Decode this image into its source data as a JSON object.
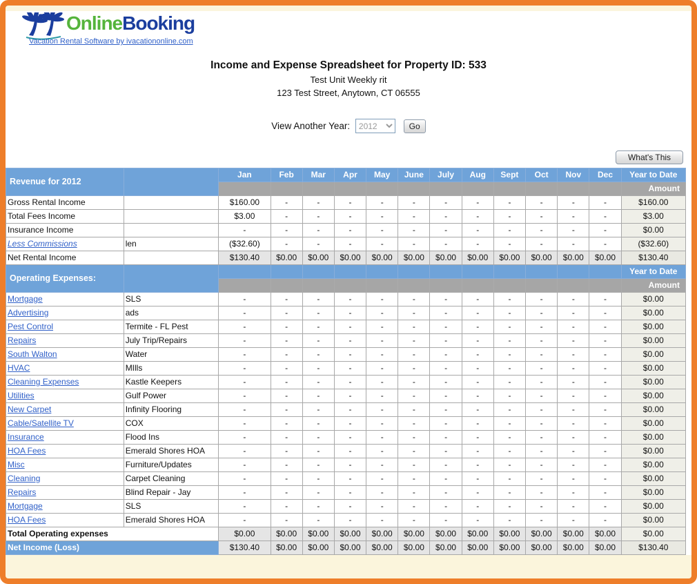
{
  "logo": {
    "brand_online": "Online",
    "brand_booking": "Booking",
    "tagline": "Vacation Rental Software by ivacationonline.com"
  },
  "header": {
    "title": "Income and Expense Spreadsheet for Property ID: 533",
    "unit_name": "Test Unit Weekly rit",
    "address": "123 Test Street, Anytown, CT 06555"
  },
  "year_selector": {
    "label": "View Another Year:",
    "selected_year": "2012",
    "go_label": "Go"
  },
  "whats_this_label": "What's This",
  "table": {
    "revenue_section_label": "Revenue for 2012",
    "expenses_section_label": "Operating Expenses:",
    "months": [
      "Jan",
      "Feb",
      "Mar",
      "Apr",
      "May",
      "June",
      "July",
      "Aug",
      "Sept",
      "Oct",
      "Nov",
      "Dec"
    ],
    "ytd_label": "Year to Date",
    "amount_label": "Amount",
    "revenue_rows": [
      {
        "label": "Gross Rental Income",
        "desc": "",
        "style": "plain",
        "monthly": [
          "$160.00",
          "-",
          "-",
          "-",
          "-",
          "-",
          "-",
          "-",
          "-",
          "-",
          "-",
          "-"
        ],
        "ytd": "$160.00"
      },
      {
        "label": "Total Fees Income",
        "desc": "",
        "style": "plain",
        "monthly": [
          "$3.00",
          "-",
          "-",
          "-",
          "-",
          "-",
          "-",
          "-",
          "-",
          "-",
          "-",
          "-"
        ],
        "ytd": "$3.00"
      },
      {
        "label": "Insurance Income",
        "desc": "",
        "style": "plain",
        "monthly": [
          "-",
          "-",
          "-",
          "-",
          "-",
          "-",
          "-",
          "-",
          "-",
          "-",
          "-",
          "-"
        ],
        "ytd": "$0.00"
      },
      {
        "label": "Less Commissions",
        "desc": "len",
        "style": "link-italic",
        "monthly": [
          "($32.60)",
          "-",
          "-",
          "-",
          "-",
          "-",
          "-",
          "-",
          "-",
          "-",
          "-",
          "-"
        ],
        "ytd": "($32.60)"
      },
      {
        "label": "Net Rental Income",
        "desc": "",
        "style": "subtotal",
        "monthly": [
          "$130.40",
          "$0.00",
          "$0.00",
          "$0.00",
          "$0.00",
          "$0.00",
          "$0.00",
          "$0.00",
          "$0.00",
          "$0.00",
          "$0.00",
          "$0.00"
        ],
        "ytd": "$130.40"
      }
    ],
    "expense_rows": [
      {
        "label": "Mortgage",
        "desc": "SLS"
      },
      {
        "label": "Advertising",
        "desc": "ads"
      },
      {
        "label": "Pest Control",
        "desc": "Termite - FL Pest"
      },
      {
        "label": "Repairs",
        "desc": "July Trip/Repairs"
      },
      {
        "label": "South Walton",
        "desc": "Water"
      },
      {
        "label": "HVAC",
        "desc": "MIlls"
      },
      {
        "label": "Cleaning Expenses",
        "desc": "Kastle Keepers"
      },
      {
        "label": "Utilities",
        "desc": "Gulf Power"
      },
      {
        "label": "New Carpet",
        "desc": "Infinity Flooring"
      },
      {
        "label": "Cable/Satellite TV",
        "desc": "COX"
      },
      {
        "label": "Insurance",
        "desc": "Flood Ins"
      },
      {
        "label": "HOA Fees",
        "desc": "Emerald Shores HOA"
      },
      {
        "label": "Misc",
        "desc": "Furniture/Updates"
      },
      {
        "label": "Cleaning",
        "desc": "Carpet Cleaning"
      },
      {
        "label": "Repairs",
        "desc": "Blind Repair - Jay"
      },
      {
        "label": "Mortgage",
        "desc": "SLS"
      },
      {
        "label": "HOA Fees",
        "desc": "Emerald Shores HOA"
      }
    ],
    "expense_monthly": [
      "-",
      "-",
      "-",
      "-",
      "-",
      "-",
      "-",
      "-",
      "-",
      "-",
      "-",
      "-"
    ],
    "expense_ytd": "$0.00",
    "total_row": {
      "label": "Total Operating expenses",
      "monthly": [
        "$0.00",
        "$0.00",
        "$0.00",
        "$0.00",
        "$0.00",
        "$0.00",
        "$0.00",
        "$0.00",
        "$0.00",
        "$0.00",
        "$0.00",
        "$0.00"
      ],
      "ytd": "$0.00"
    },
    "net_income_row": {
      "label": "Net Income (Loss)",
      "monthly": [
        "$130.40",
        "$0.00",
        "$0.00",
        "$0.00",
        "$0.00",
        "$0.00",
        "$0.00",
        "$0.00",
        "$0.00",
        "$0.00",
        "$0.00",
        "$0.00"
      ],
      "ytd": "$130.40"
    }
  },
  "colors": {
    "frame_orange": "#EE7E2A",
    "header_blue": "#6FA3D9",
    "header_gray": "#A6A6A6",
    "link_blue": "#3060C8",
    "logo_green": "#55B43C",
    "logo_blue": "#1B3E9E",
    "subtotal_bg": "#E5E5E5",
    "ytd_bg": "#EFEFE8",
    "bottom_cream": "#FBF5DC"
  }
}
